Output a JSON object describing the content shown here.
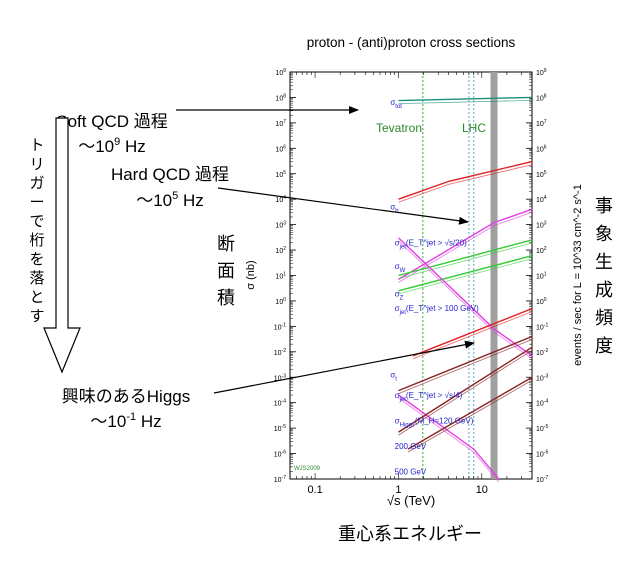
{
  "chart_data": {
    "type": "line",
    "title": "proton - (anti)proton cross sections",
    "xlabel": "√s (TeV)",
    "ylabel_left": "σ (nb)",
    "ylabel_right": "events / sec for L = 10^33 cm^-2 s^-1",
    "x_scale": "log",
    "y_scale": "log",
    "xlim": [
      0.05,
      40
    ],
    "ylim": [
      1e-07,
      1000000000.0
    ],
    "x_ticks": [
      "0.1",
      "1",
      "10"
    ],
    "y_ticks_left": [
      "10^-7",
      "10^-6",
      "10^-5",
      "10^-4",
      "10^-3",
      "10^-2",
      "10^-1",
      "10^0",
      "10^1",
      "10^2",
      "10^3",
      "10^4",
      "10^5",
      "10^6",
      "10^7",
      "10^8",
      "10^9"
    ],
    "y_ticks_right": [
      "10^-7",
      "10^-6",
      "10^-5",
      "10^-4",
      "10^-3",
      "10^-2",
      "10^-1",
      "10^0",
      "10^1",
      "10^2",
      "10^3",
      "10^4",
      "10^5",
      "10^6",
      "10^7",
      "10^8",
      "10^9"
    ],
    "vertical_lines": [
      {
        "label": "Tevatron",
        "x": [
          1.96
        ],
        "color": "#33aa33"
      },
      {
        "label": "LHC",
        "x": [
          7,
          8,
          14
        ],
        "color": "#5aaabb"
      }
    ],
    "series": [
      {
        "name": "σ_tot",
        "color": "#1a8f7a",
        "x": [
          1,
          40
        ],
        "y": [
          75000000.0,
          100000000.0
        ],
        "label_x": 0.8,
        "label_y": 50000000.0
      },
      {
        "name": "σ_b",
        "color": "#e02020",
        "x": [
          1,
          4,
          40
        ],
        "y": [
          10000.0,
          50000.0,
          300000.0
        ],
        "label_x": 0.8,
        "label_y": 4000.0
      },
      {
        "name": "σ_jet(E_T^jet > √s/20)",
        "color": "#e040e0",
        "x": [
          1,
          14,
          40
        ],
        "y": [
          7.0,
          1200.0,
          4000.0
        ],
        "label_x": 0.9,
        "label_y": 150.0
      },
      {
        "name": "σ_W",
        "color": "#33cc33",
        "x": [
          1,
          40
        ],
        "y": [
          10.0,
          250.0
        ],
        "label_x": 0.9,
        "label_y": 18.0
      },
      {
        "name": "σ_Z",
        "color": "#33cc33",
        "x": [
          1,
          40
        ],
        "y": [
          2.5,
          60.0
        ],
        "label_x": 0.9,
        "label_y": 1.5
      },
      {
        "name": "σ_jet(E_T^jet > 100 GeV)",
        "color": "#e040e0",
        "x": [
          1,
          14,
          40
        ],
        "y": [
          300.0,
          0.08,
          0.007
        ],
        "label_x": 0.9,
        "label_y": 0.4
      },
      {
        "name": "σ_t",
        "color": "#e02020",
        "x": [
          1.5,
          40
        ],
        "y": [
          0.007,
          0.5
        ],
        "label_x": 0.8,
        "label_y": 0.001
      },
      {
        "name": "σ_jet(E_T^jet > √s/4)",
        "color": "#e040e0",
        "x": [
          1,
          8,
          16
        ],
        "y": [
          0.0002,
          1.5e-06,
          1e-07
        ],
        "label_x": 0.9,
        "label_y": 0.00015
      },
      {
        "name": "σ_Higgs(M_H=120 GeV)",
        "color": "#882222",
        "x": [
          1,
          40
        ],
        "y": [
          0.0003,
          0.04
        ],
        "label_x": 0.9,
        "label_y": 1.5e-05
      },
      {
        "name": "200 GeV",
        "color": "#882222",
        "x": [
          1,
          40
        ],
        "y": [
          7e-06,
          0.015
        ],
        "label_x": 0.9,
        "label_y": 1.5e-06
      },
      {
        "name": "500 GeV",
        "color": "#882222",
        "x": [
          1.3,
          40
        ],
        "y": [
          1.5e-06,
          0.001
        ],
        "label_x": 0.9,
        "label_y": 1.5e-07
      }
    ],
    "credit": "WJS2009"
  },
  "annotations": {
    "soft_qcd_line1": "Soft QCD 過程",
    "soft_qcd_line2": "〜10",
    "soft_qcd_exp": "9",
    "soft_qcd_unit": "Hz",
    "hard_qcd_line1": "Hard QCD 過程",
    "hard_qcd_line2": "〜10",
    "hard_qcd_exp": "5",
    "hard_qcd_unit": "Hz",
    "higgs_line1": "興味のあるHiggs",
    "higgs_line2": "〜10",
    "higgs_exp": "-1",
    "higgs_unit": "Hz",
    "trigger_text": "トリガーで桁を落とす",
    "left_axis_jp": "断面積",
    "right_axis_jp": "事象生成頻度",
    "bottom_axis_jp": "重心系エネルギー",
    "tevatron_label": "Tevatron",
    "lhc_label": "LHC"
  }
}
